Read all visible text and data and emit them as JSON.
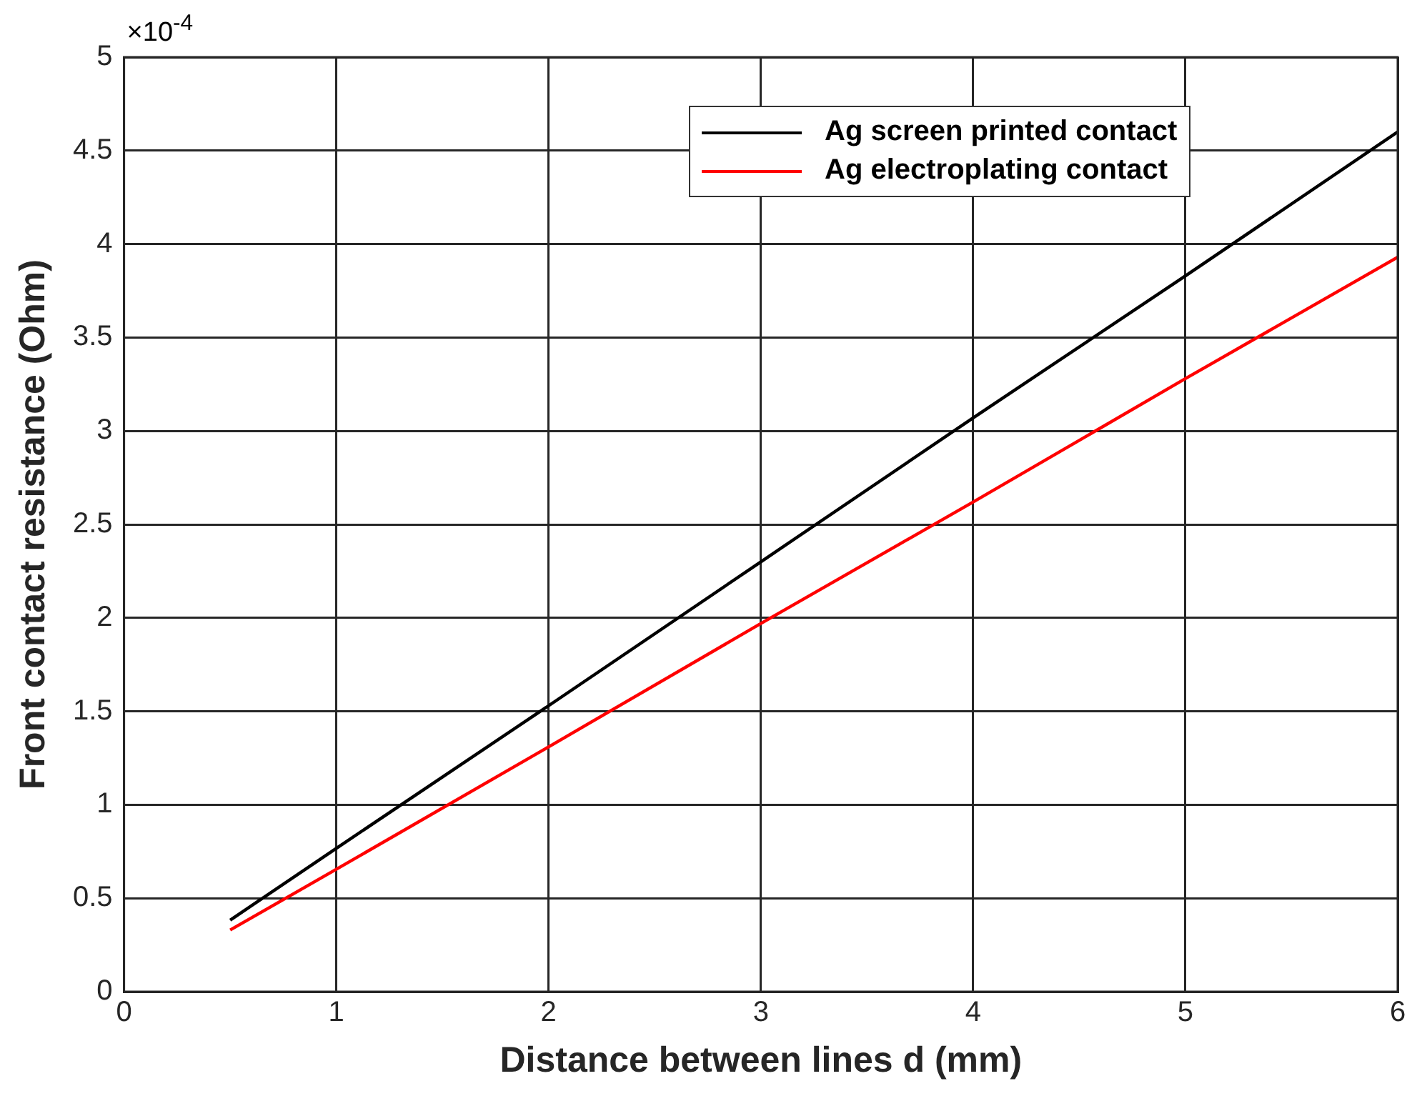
{
  "chart_data": {
    "type": "line",
    "xlabel": "Distance between lines d (mm)",
    "ylabel": "Front contact resistance (Ohm)",
    "annotations": [
      "×10$^{-4}$"
    ],
    "x": [
      0.5,
      1,
      2,
      3,
      4,
      5,
      6
    ],
    "series": [
      {
        "name": "Ag screen printed contact",
        "color": "#000000",
        "values": [
          0.383,
          0.767,
          1.53,
          2.3,
          3.07,
          3.83,
          4.6
        ]
      },
      {
        "name": "Ag electroplating contact",
        "color": "#ff0000",
        "values": [
          0.33,
          0.655,
          1.31,
          1.97,
          2.62,
          3.28,
          3.93
        ]
      }
    ],
    "xlim": [
      0,
      6
    ],
    "xticks": [
      0,
      1,
      2,
      3,
      4,
      5,
      6
    ],
    "ylim": [
      0,
      5
    ],
    "yticks": [
      0,
      0.5,
      1,
      1.5,
      2,
      2.5,
      3,
      3.5,
      4,
      4.5,
      5
    ],
    "grid": true,
    "legend": "top right",
    "marker": "none",
    "line_style": "solid"
  }
}
